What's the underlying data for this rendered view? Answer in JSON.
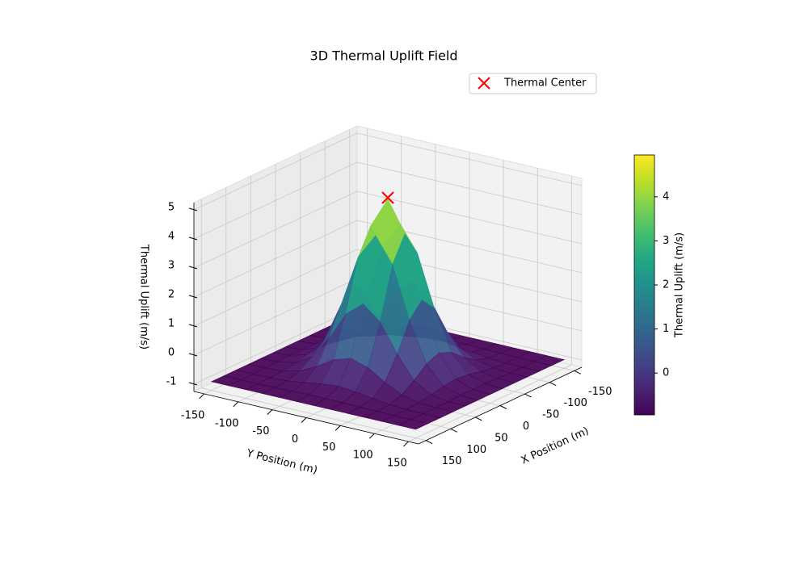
{
  "chart_data": {
    "type": "surface3d",
    "title": "3D Thermal Uplift Field",
    "x_label": "X Position (m)",
    "y_label": "Y Position (m)",
    "z_label": "Thermal Uplift (m/s)",
    "x": [
      -150,
      -125,
      -100,
      -75,
      -50,
      -25,
      0,
      25,
      50,
      75,
      100,
      125,
      150
    ],
    "y": [
      -150,
      -125,
      -100,
      -75,
      -50,
      -25,
      0,
      25,
      50,
      75,
      100,
      125,
      150
    ],
    "z": [
      [
        -0.95,
        -0.95,
        -0.95,
        -0.95,
        -0.95,
        -0.95,
        -0.95,
        -0.95,
        -0.95,
        -0.95,
        -0.95,
        -0.95,
        -0.95
      ],
      [
        -0.95,
        -0.95,
        -0.95,
        -0.94,
        -0.93,
        -0.91,
        -0.91,
        -0.91,
        -0.93,
        -0.94,
        -0.95,
        -0.95,
        -0.95
      ],
      [
        -0.95,
        -0.95,
        -0.94,
        -0.91,
        -0.83,
        -0.74,
        -0.69,
        -0.74,
        -0.83,
        -0.91,
        -0.94,
        -0.95,
        -0.95
      ],
      [
        -0.95,
        -0.94,
        -0.91,
        -0.77,
        -0.48,
        -0.11,
        0.07,
        -0.11,
        -0.48,
        -0.77,
        -0.91,
        -0.94,
        -0.95
      ],
      [
        -0.95,
        -0.93,
        -0.83,
        -0.48,
        0.29,
        1.27,
        1.75,
        1.27,
        0.29,
        -0.48,
        -0.83,
        -0.93,
        -0.95
      ],
      [
        -0.95,
        -0.91,
        -0.74,
        -0.11,
        1.27,
        3.04,
        3.9,
        3.04,
        1.27,
        -0.11,
        -0.74,
        -0.91,
        -0.95
      ],
      [
        -0.95,
        -0.91,
        -0.69,
        0.07,
        1.75,
        3.9,
        4.95,
        3.9,
        1.75,
        0.07,
        -0.69,
        -0.91,
        -0.95
      ],
      [
        -0.95,
        -0.91,
        -0.74,
        -0.11,
        1.27,
        3.04,
        3.9,
        3.04,
        1.27,
        -0.11,
        -0.74,
        -0.91,
        -0.95
      ],
      [
        -0.95,
        -0.93,
        -0.83,
        -0.48,
        0.29,
        1.27,
        1.75,
        1.27,
        0.29,
        -0.48,
        -0.83,
        -0.93,
        -0.95
      ],
      [
        -0.95,
        -0.94,
        -0.91,
        -0.77,
        -0.48,
        -0.11,
        0.07,
        -0.11,
        -0.48,
        -0.77,
        -0.91,
        -0.94,
        -0.95
      ],
      [
        -0.95,
        -0.95,
        -0.94,
        -0.91,
        -0.83,
        -0.74,
        -0.69,
        -0.74,
        -0.83,
        -0.91,
        -0.94,
        -0.95,
        -0.95
      ],
      [
        -0.95,
        -0.95,
        -0.95,
        -0.94,
        -0.93,
        -0.91,
        -0.91,
        -0.91,
        -0.93,
        -0.94,
        -0.95,
        -0.95,
        -0.95
      ],
      [
        -0.95,
        -0.95,
        -0.95,
        -0.95,
        -0.95,
        -0.95,
        -0.95,
        -0.95,
        -0.95,
        -0.95,
        -0.95,
        -0.95,
        -0.95
      ]
    ],
    "xlim": [
      -165,
      165
    ],
    "ylim": [
      -165,
      165
    ],
    "zlim": [
      -1.25,
      5.25
    ],
    "xticks": [
      -150,
      -100,
      -50,
      0,
      50,
      100,
      150
    ],
    "yticks": [
      -150,
      -100,
      -50,
      0,
      50,
      100,
      150
    ],
    "zticks": [
      -1,
      0,
      1,
      2,
      3,
      4,
      5
    ],
    "colormap": "viridis",
    "clim": [
      -0.95,
      4.95
    ],
    "colorbar": {
      "label": "Thermal Uplift (m/s)",
      "ticks": [
        0,
        1,
        2,
        3,
        4
      ]
    },
    "markers": [
      {
        "name": "Thermal Center",
        "color": "red",
        "x": 0,
        "y": 0,
        "z": 5
      }
    ],
    "grid": true
  }
}
